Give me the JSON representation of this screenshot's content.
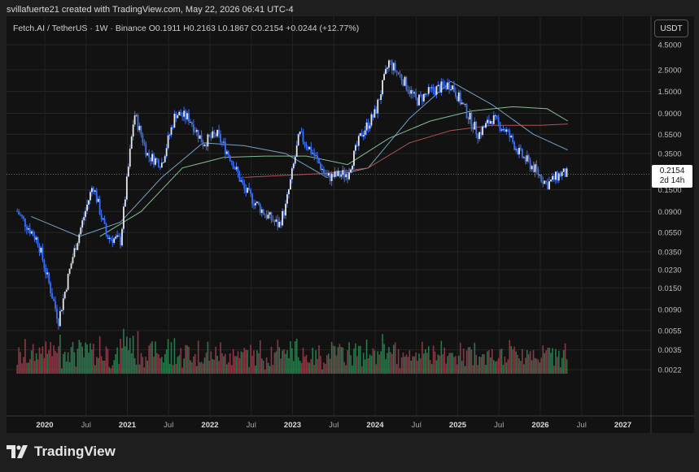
{
  "attribution": "svillafuerte21 created with TradingView.com, May 22, 2026 06:41 UTC-4",
  "legend": {
    "symbol": "Fetch.AI / TetherUS · 1W · Binance",
    "open": "O0.1911",
    "high": "H0.2163",
    "low": "L0.1867",
    "close": "C0.2154",
    "change": "+0.0244 (+12.77%)"
  },
  "currency_button": "USDT",
  "last_price_tag": {
    "price": "0.2154",
    "countdown": "2d 14h"
  },
  "footer_brand": "TradingView",
  "colors": {
    "candle": "#3b6ff5",
    "candle_up_body": "#e8e8e8",
    "ma_short": "#7fb3d5",
    "ma_mid": "#8fd19e",
    "ma_long": "#c45a5a",
    "volume_up": "#2e8b57",
    "volume_down": "#a04050"
  },
  "chart_data": {
    "type": "candlestick",
    "scale": "log",
    "y_ticks": [
      "4.5000",
      "2.5000",
      "1.5000",
      "0.9000",
      "0.5500",
      "0.3500",
      "0.2154",
      "0.1500",
      "0.0900",
      "0.0550",
      "0.0350",
      "0.0230",
      "0.0150",
      "0.0090",
      "0.0055",
      "0.0035",
      "0.0022"
    ],
    "x_ticks": [
      "2020",
      "Jul",
      "2021",
      "Jul",
      "2022",
      "Jul",
      "2023",
      "Jul",
      "2024",
      "Jul",
      "2025",
      "Jul",
      "2026",
      "Jul",
      "2027"
    ],
    "ylim": [
      0.0022,
      4.5
    ],
    "price_path": {
      "x": [
        "2019-09",
        "2019-12",
        "2020-03",
        "2020-05",
        "2020-08",
        "2020-10",
        "2020-12",
        "2021-02",
        "2021-04",
        "2021-06",
        "2021-08",
        "2021-10",
        "2021-12",
        "2022-02",
        "2022-04",
        "2022-06",
        "2022-09",
        "2022-11",
        "2022-12",
        "2023-02",
        "2023-04",
        "2023-06",
        "2023-09",
        "2023-11",
        "2024-01",
        "2024-03",
        "2024-05",
        "2024-07",
        "2024-09",
        "2024-12",
        "2025-02",
        "2025-04",
        "2025-06",
        "2025-08",
        "2025-10",
        "2025-12",
        "2026-02",
        "2026-04",
        "2026-05"
      ],
      "close": [
        0.09,
        0.045,
        0.007,
        0.03,
        0.17,
        0.05,
        0.045,
        0.9,
        0.33,
        0.28,
        0.9,
        0.8,
        0.45,
        0.55,
        0.32,
        0.15,
        0.085,
        0.065,
        0.1,
        0.55,
        0.35,
        0.2,
        0.22,
        0.55,
        0.9,
        3.0,
        2.0,
        1.2,
        1.5,
        1.8,
        1.0,
        0.55,
        0.8,
        0.6,
        0.35,
        0.25,
        0.17,
        0.22,
        0.2154
      ]
    },
    "moving_averages": [
      {
        "name": "",
        "color": "#7fb3d5",
        "x": [
          "2019-11",
          "2020-06",
          "2020-12",
          "2021-06",
          "2021-12",
          "2022-06",
          "2022-12",
          "2023-06",
          "2023-12",
          "2024-06",
          "2024-12",
          "2025-06",
          "2025-12",
          "2026-05"
        ],
        "values": [
          0.08,
          0.05,
          0.07,
          0.2,
          0.45,
          0.42,
          0.35,
          0.2,
          0.25,
          0.8,
          1.9,
          1.1,
          0.55,
          0.38
        ]
      },
      {
        "name": "",
        "color": "#8fd19e",
        "x": [
          "2020-09",
          "2021-03",
          "2021-09",
          "2022-03",
          "2022-09",
          "2023-03",
          "2023-09",
          "2024-03",
          "2024-09",
          "2025-03",
          "2025-09",
          "2026-02",
          "2026-05"
        ],
        "values": [
          0.05,
          0.09,
          0.25,
          0.32,
          0.33,
          0.33,
          0.27,
          0.5,
          0.75,
          0.95,
          1.05,
          1.0,
          0.75
        ]
      },
      {
        "name": "",
        "color": "#c45a5a",
        "x": [
          "2022-06",
          "2022-12",
          "2023-06",
          "2023-12",
          "2024-06",
          "2024-12",
          "2025-06",
          "2026-01",
          "2026-05"
        ],
        "values": [
          0.2,
          0.21,
          0.22,
          0.25,
          0.45,
          0.6,
          0.68,
          0.68,
          0.7
        ]
      }
    ]
  }
}
